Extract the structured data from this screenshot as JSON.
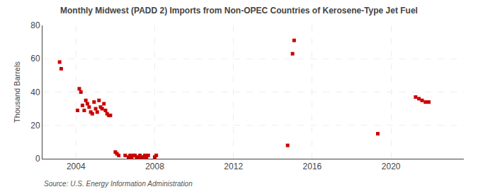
{
  "chart_data": {
    "type": "scatter",
    "title": "Monthly Midwest (PADD 2) Imports from Non-OPEC Countries of Kerosene-Type Jet Fuel",
    "ylabel": "Thousand Barrels",
    "annotations": [
      "Source: U.S. Energy Information Administration"
    ],
    "x": [
      2003.17,
      2003.25,
      2004.08,
      2004.17,
      2004.25,
      2004.33,
      2004.42,
      2004.5,
      2004.58,
      2004.67,
      2004.75,
      2004.83,
      2004.92,
      2005.0,
      2005.08,
      2005.17,
      2005.25,
      2005.33,
      2005.42,
      2005.5,
      2005.58,
      2005.67,
      2005.75,
      2006.0,
      2006.08,
      2006.17,
      2006.5,
      2006.67,
      2006.75,
      2006.83,
      2006.92,
      2007.0,
      2007.08,
      2007.17,
      2007.25,
      2007.33,
      2007.42,
      2007.5,
      2007.58,
      2007.67,
      2008.0,
      2008.08,
      2014.75,
      2015.0,
      2015.08,
      2019.33,
      2021.25,
      2021.42,
      2021.58,
      2021.75,
      2021.92
    ],
    "values": [
      58,
      54,
      29,
      42,
      40,
      32,
      29,
      35,
      33,
      31,
      28,
      27,
      34,
      30,
      28,
      35,
      31,
      30,
      33,
      29,
      27,
      26,
      26,
      4,
      3,
      2,
      2,
      1,
      2,
      1,
      2,
      2,
      1,
      1,
      2,
      1,
      1,
      2,
      1,
      2,
      1,
      2,
      8,
      63,
      71,
      15,
      37,
      36,
      35,
      34,
      34
    ],
    "color": "#cc0000",
    "marker": "square",
    "xlim": [
      2002.3,
      2023.7
    ],
    "ylim": [
      0,
      80
    ],
    "xticks": [
      2004,
      2008,
      2012,
      2016,
      2020
    ],
    "yticks": [
      0,
      20,
      40,
      60,
      80
    ],
    "grid": true
  }
}
